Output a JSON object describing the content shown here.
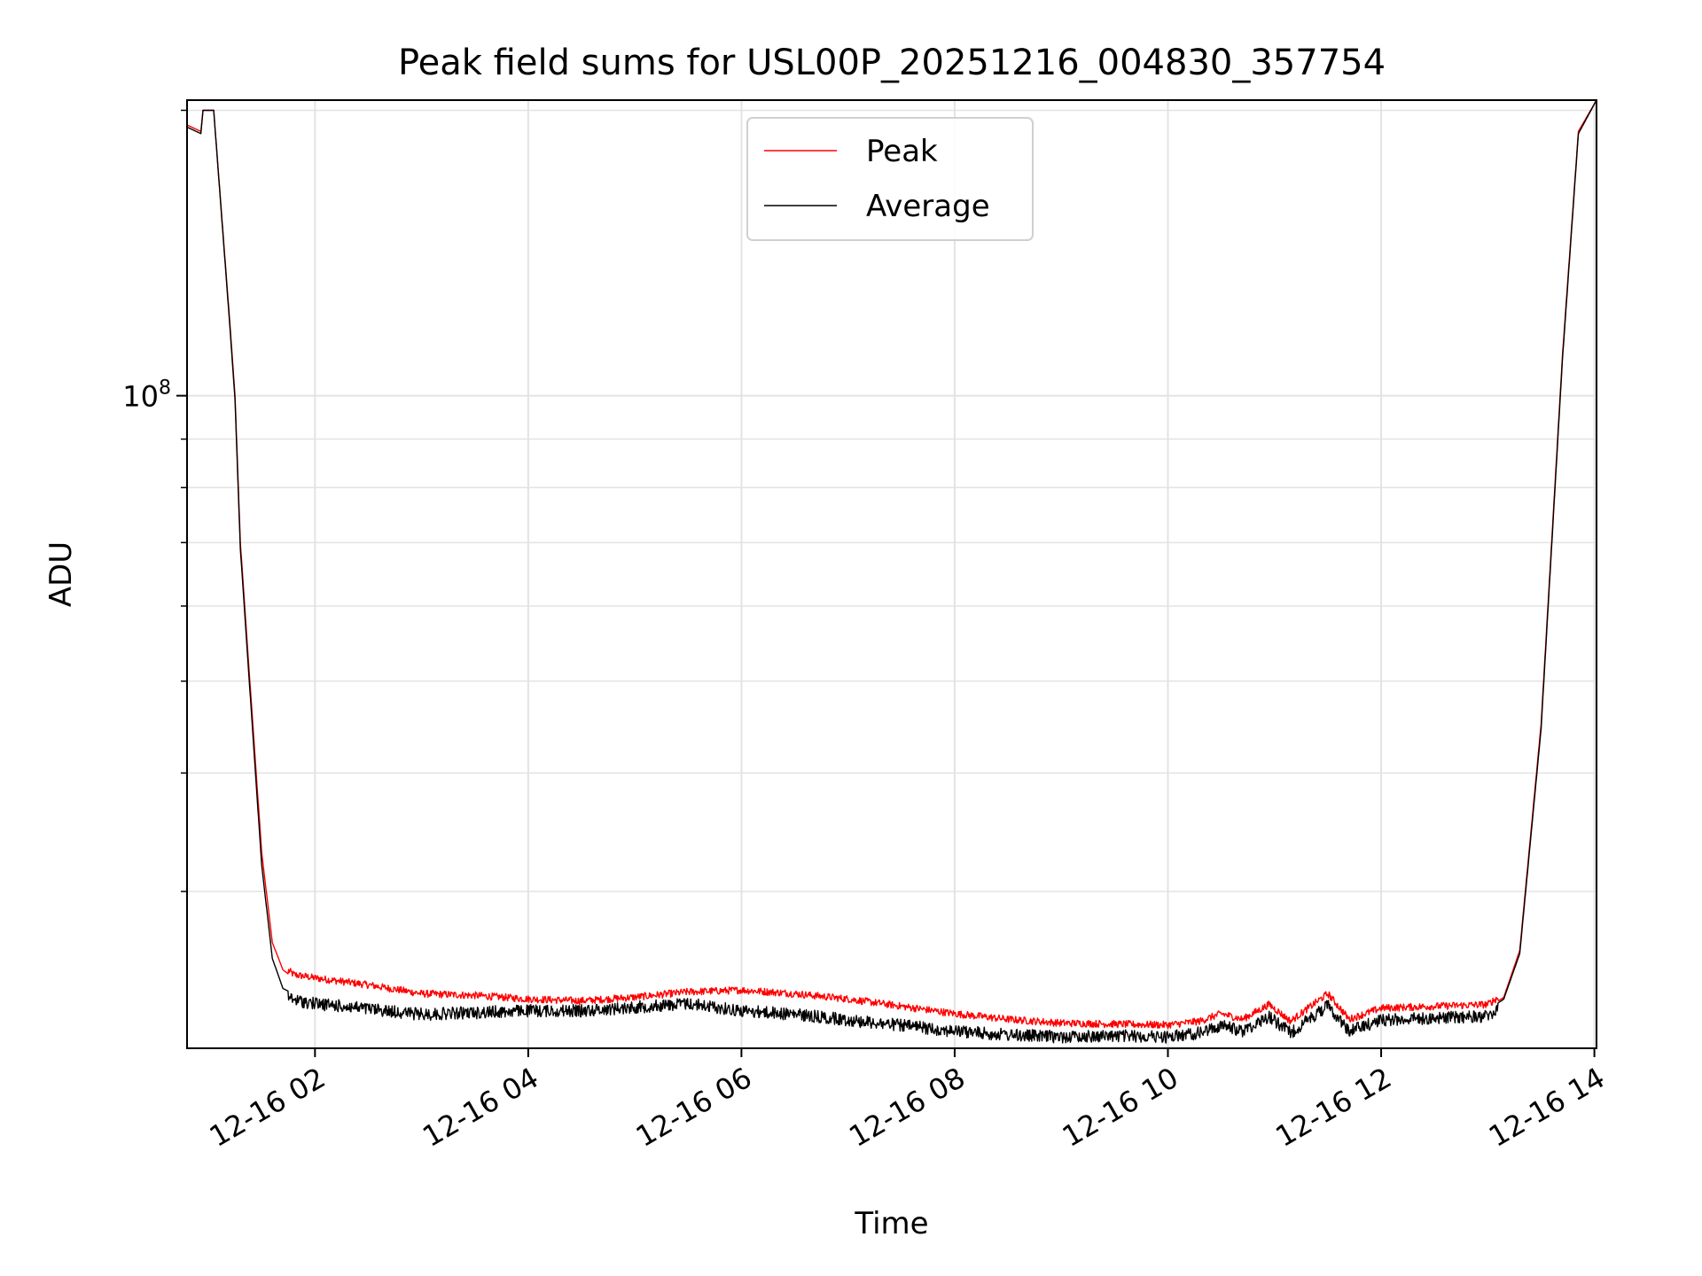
{
  "chart_data": {
    "type": "line",
    "title": "Peak field sums for USL00P_20251216_004830_357754",
    "xlabel": "Time",
    "ylabel": "ADU",
    "yscale": "log",
    "ylim": [
      20500000,
      205000000
    ],
    "xlim_hours": [
      0.8,
      14.02
    ],
    "x_ticks": [
      {
        "hour": 2,
        "label": "12-16 02"
      },
      {
        "hour": 4,
        "label": "12-16 04"
      },
      {
        "hour": 6,
        "label": "12-16 06"
      },
      {
        "hour": 8,
        "label": "12-16 08"
      },
      {
        "hour": 10,
        "label": "12-16 10"
      },
      {
        "hour": 12,
        "label": "12-16 12"
      },
      {
        "hour": 14,
        "label": "12-16 14"
      }
    ],
    "y_major_ticks": [
      {
        "value": 100000000,
        "base": "10",
        "exp": "8"
      }
    ],
    "y_minor_ticks": [
      30000000,
      40000000,
      50000000,
      60000000,
      70000000,
      80000000,
      90000000,
      200000000
    ],
    "grid": true,
    "legend_position": "top-center",
    "series": [
      {
        "name": "Peak",
        "color": "#ff0000",
        "x_hours": [
          0.8,
          0.93,
          0.95,
          1.05,
          1.2,
          1.25,
          1.3,
          1.4,
          1.5,
          1.6,
          1.7,
          1.8,
          2.0,
          2.5,
          3.0,
          3.5,
          4.0,
          4.5,
          5.0,
          5.5,
          6.0,
          6.5,
          7.0,
          7.5,
          8.0,
          8.5,
          9.0,
          9.5,
          10.0,
          10.3,
          10.5,
          10.7,
          10.95,
          11.15,
          11.5,
          11.7,
          12.0,
          12.5,
          13.0,
          13.15,
          13.3,
          13.5,
          13.7,
          13.85,
          14.02
        ],
        "values": [
          193000000,
          190000000,
          200000000,
          200000000,
          120000000,
          100000000,
          70000000,
          48000000,
          33000000,
          26500000,
          24800000,
          24300000,
          24100000,
          23700000,
          23200000,
          23100000,
          22900000,
          22800000,
          23000000,
          23300000,
          23400000,
          23200000,
          22900000,
          22500000,
          22100000,
          21800000,
          21600000,
          21550000,
          21500000,
          21700000,
          22100000,
          21800000,
          22600000,
          21700000,
          23200000,
          21800000,
          22400000,
          22500000,
          22600000,
          23200000,
          26000000,
          45000000,
          110000000,
          190000000,
          205000000
        ]
      },
      {
        "name": "Average",
        "color": "#000000",
        "x_hours": [
          0.8,
          0.93,
          0.95,
          1.05,
          1.2,
          1.25,
          1.3,
          1.4,
          1.5,
          1.6,
          1.7,
          1.8,
          2.0,
          2.5,
          3.0,
          3.5,
          4.0,
          4.5,
          5.0,
          5.5,
          6.0,
          6.5,
          7.0,
          7.5,
          8.0,
          8.5,
          9.0,
          9.5,
          10.0,
          10.3,
          10.5,
          10.7,
          10.95,
          11.15,
          11.5,
          11.7,
          12.0,
          12.5,
          13.0,
          13.15,
          13.3,
          13.5,
          13.7,
          13.85,
          14.02
        ],
        "values": [
          192000000,
          189000000,
          200000000,
          200000000,
          119000000,
          99000000,
          69000000,
          47000000,
          32000000,
          25500000,
          23700000,
          23400000,
          23200000,
          22900000,
          22600000,
          22700000,
          22800000,
          22800000,
          23000000,
          23200000,
          22800000,
          22600000,
          22300000,
          22000000,
          21700000,
          21500000,
          21400000,
          21450000,
          21400000,
          21600000,
          22000000,
          21700000,
          22500000,
          21600000,
          23100000,
          21700000,
          22300000,
          22400000,
          22500000,
          23100000,
          25800000,
          44500000,
          109000000,
          189000000,
          205000000
        ]
      }
    ]
  }
}
